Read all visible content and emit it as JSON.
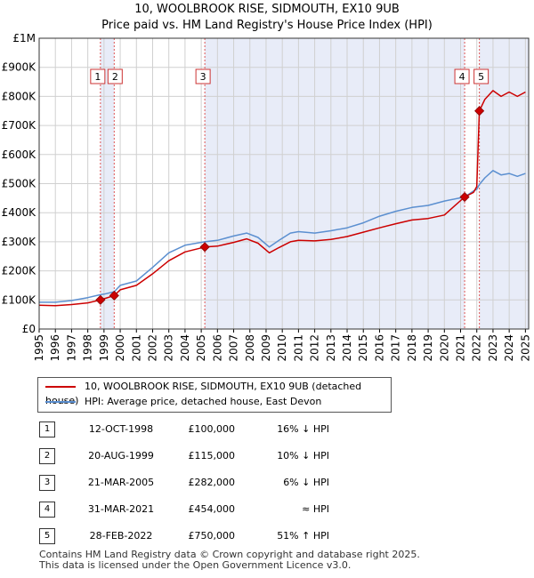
{
  "chart_data": {
    "type": "line",
    "title": "10, WOOLBROOK RISE, SIDMOUTH, EX10 9UB",
    "subtitle": "Price paid vs. HM Land Registry's House Price Index (HPI)",
    "xlabel": "",
    "ylabel": "",
    "xlim": [
      1995,
      2025.2
    ],
    "ylim": [
      0,
      1000000
    ],
    "x_ticks": [
      "1995",
      "1996",
      "1997",
      "1998",
      "1999",
      "2000",
      "2001",
      "2002",
      "2003",
      "2004",
      "2005",
      "2006",
      "2007",
      "2008",
      "2009",
      "2010",
      "2011",
      "2012",
      "2013",
      "2014",
      "2015",
      "2016",
      "2017",
      "2018",
      "2019",
      "2020",
      "2021",
      "2022",
      "2023",
      "2024",
      "2025"
    ],
    "y_ticks": [
      {
        "value": 0,
        "label": "£0"
      },
      {
        "value": 100000,
        "label": "£100K"
      },
      {
        "value": 200000,
        "label": "£200K"
      },
      {
        "value": 300000,
        "label": "£300K"
      },
      {
        "value": 400000,
        "label": "£400K"
      },
      {
        "value": 500000,
        "label": "£500K"
      },
      {
        "value": 600000,
        "label": "£600K"
      },
      {
        "value": 700000,
        "label": "£700K"
      },
      {
        "value": 800000,
        "label": "£800K"
      },
      {
        "value": 900000,
        "label": "£900K"
      },
      {
        "value": 1000000,
        "label": "£1M"
      }
    ],
    "grid": true,
    "shaded_periods": [
      [
        1998.78,
        1999.63
      ],
      [
        2005.22,
        2021.25
      ],
      [
        2022.16,
        2025.2
      ]
    ],
    "series": [
      {
        "name": "10, WOOLBROOK RISE, SIDMOUTH, EX10 9UB (detached house)",
        "color": "#cc0000",
        "x": [
          1995,
          1996,
          1997,
          1998,
          1998.78,
          1999.0,
          1999.63,
          2000,
          2001,
          2002,
          2003,
          2004,
          2005.22,
          2006,
          2007,
          2007.8,
          2008.5,
          2009.2,
          2009.8,
          2010.5,
          2011,
          2012,
          2013,
          2014,
          2015,
          2016,
          2017,
          2018,
          2019,
          2020,
          2021.25,
          2021.8,
          2022.0,
          2022.16,
          2022.5,
          2023,
          2023.5,
          2024,
          2024.5,
          2025
        ],
        "values": [
          82000,
          80000,
          84000,
          90000,
          100000,
          104000,
          115000,
          135000,
          150000,
          190000,
          235000,
          265000,
          282000,
          285000,
          298000,
          310000,
          295000,
          262000,
          280000,
          300000,
          305000,
          303000,
          308000,
          318000,
          333000,
          348000,
          362000,
          375000,
          380000,
          392000,
          454000,
          470000,
          490000,
          750000,
          790000,
          820000,
          800000,
          815000,
          800000,
          815000
        ]
      },
      {
        "name": "HPI: Average price, detached house, East Devon",
        "color": "#5b8fd0",
        "x": [
          1995,
          1996,
          1997,
          1998,
          1998.78,
          1999.0,
          1999.63,
          2000,
          2001,
          2002,
          2003,
          2004,
          2005.22,
          2006,
          2007,
          2007.8,
          2008.5,
          2009.2,
          2009.8,
          2010.5,
          2011,
          2012,
          2013,
          2014,
          2015,
          2016,
          2017,
          2018,
          2019,
          2020,
          2021.25,
          2021.8,
          2022.0,
          2022.16,
          2022.5,
          2023,
          2023.5,
          2024,
          2024.5,
          2025
        ],
        "values": [
          92000,
          92000,
          98000,
          108000,
          118000,
          120000,
          128000,
          150000,
          165000,
          212000,
          262000,
          288000,
          300000,
          305000,
          320000,
          330000,
          315000,
          282000,
          305000,
          330000,
          335000,
          330000,
          338000,
          348000,
          365000,
          388000,
          405000,
          418000,
          425000,
          440000,
          454000,
          475000,
          480000,
          497000,
          520000,
          545000,
          530000,
          535000,
          525000,
          535000
        ]
      }
    ],
    "transactions": [
      {
        "num": "1",
        "x": 1998.78,
        "price": 100000
      },
      {
        "num": "2",
        "x": 1999.63,
        "price": 115000
      },
      {
        "num": "3",
        "x": 2005.22,
        "price": 282000
      },
      {
        "num": "4",
        "x": 2021.25,
        "price": 454000
      },
      {
        "num": "5",
        "x": 2022.16,
        "price": 750000
      }
    ]
  },
  "legend": {
    "red_label": "10, WOOLBROOK RISE, SIDMOUTH, EX10 9UB (detached house)",
    "blue_label": "HPI: Average price, detached house, East Devon"
  },
  "table": [
    {
      "num": "1",
      "date": "12-OCT-1998",
      "price": "£100,000",
      "hpi": "16% ↓ HPI"
    },
    {
      "num": "2",
      "date": "20-AUG-1999",
      "price": "£115,000",
      "hpi": "10% ↓ HPI"
    },
    {
      "num": "3",
      "date": "21-MAR-2005",
      "price": "£282,000",
      "hpi": "6% ↓ HPI"
    },
    {
      "num": "4",
      "date": "31-MAR-2021",
      "price": "£454,000",
      "hpi": "≈ HPI"
    },
    {
      "num": "5",
      "date": "28-FEB-2022",
      "price": "£750,000",
      "hpi": "51% ↑ HPI"
    }
  ],
  "footer": {
    "line1": "Contains HM Land Registry data © Crown copyright and database right 2025.",
    "line2": "This data is licensed under the Open Government Licence v3.0."
  }
}
